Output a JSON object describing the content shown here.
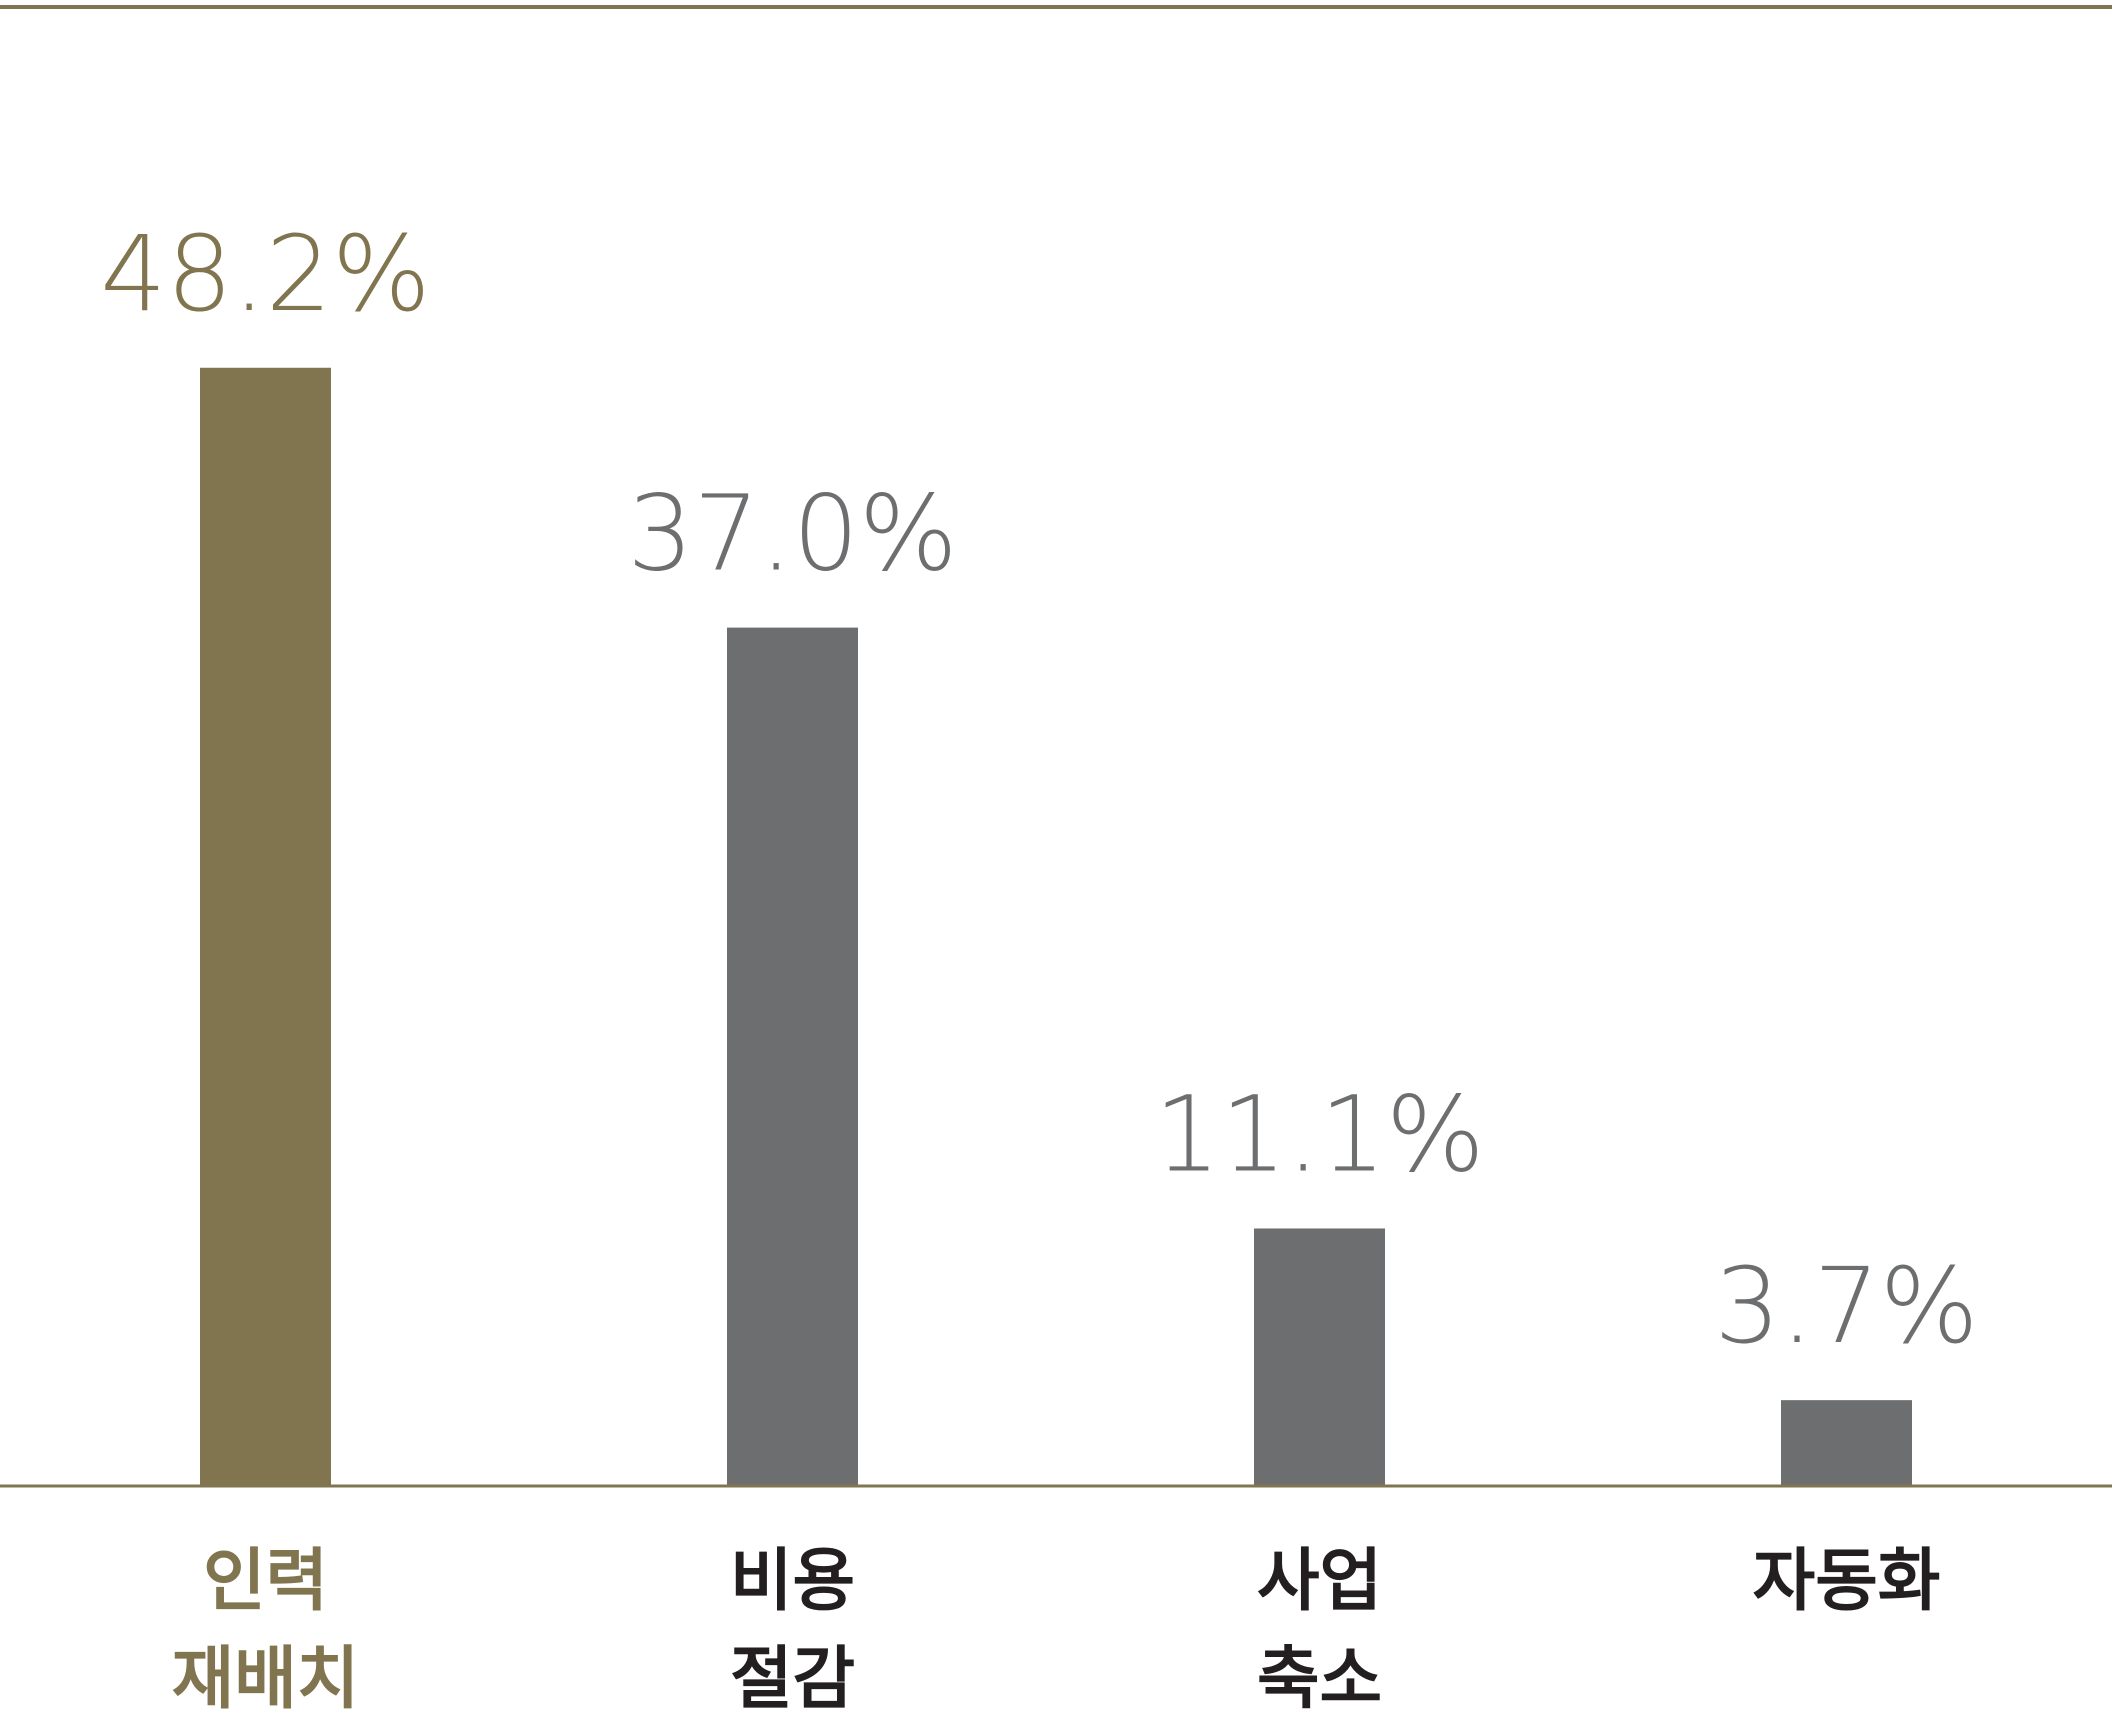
{
  "chart_data": {
    "type": "bar",
    "categories": [
      [
        "인력",
        "재배치"
      ],
      [
        "비용",
        "절감"
      ],
      [
        "사업",
        "축소"
      ],
      [
        "자동화"
      ]
    ],
    "values": [
      48.2,
      37.0,
      11.1,
      3.7
    ],
    "value_labels": [
      "48.2%",
      "37.0%",
      "11.1%",
      "3.7%"
    ],
    "colors": [
      "#817550",
      "#6d6e70",
      "#6d6e70",
      "#6d6e70"
    ],
    "label_colors": [
      "#817550",
      "#231f20",
      "#231f20",
      "#231f20"
    ],
    "axis_color": "#817550",
    "ylim": [
      0,
      60
    ]
  }
}
